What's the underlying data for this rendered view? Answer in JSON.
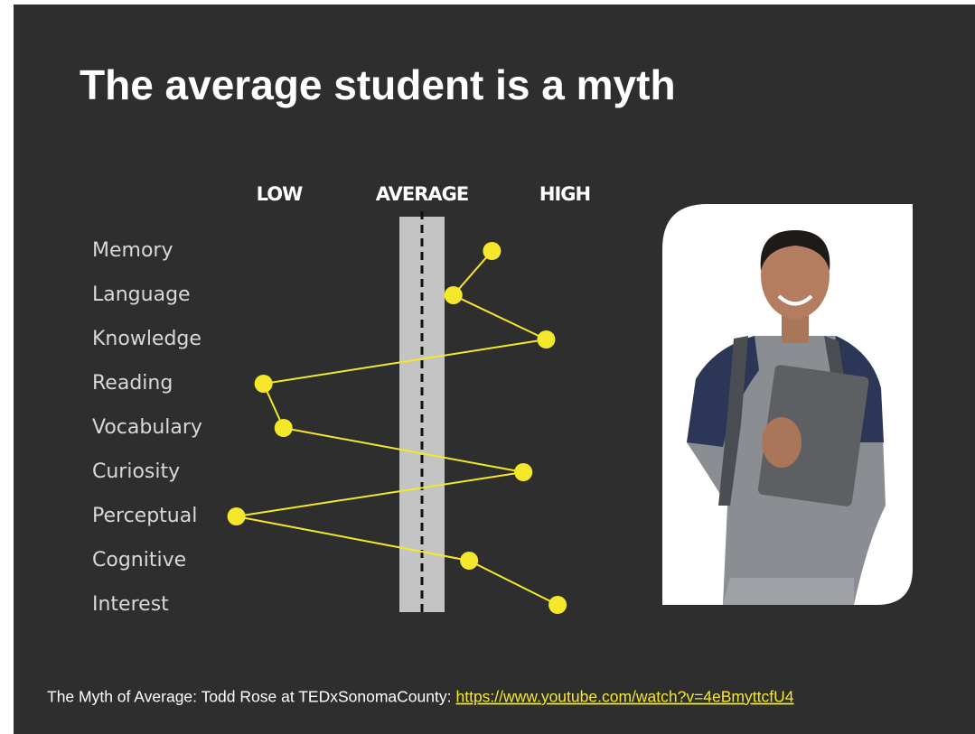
{
  "title": "The average student is a myth",
  "chart_data": {
    "type": "line",
    "categories": [
      "Memory",
      "Language",
      "Knowledge",
      "Reading",
      "Vocabulary",
      "Curiosity",
      "Perceptual",
      "Cognitive",
      "Interest"
    ],
    "values": [
      0.49,
      0.22,
      0.87,
      -1.11,
      -0.97,
      0.71,
      -1.3,
      0.33,
      0.95
    ],
    "color": "#f5e82a",
    "xlim": [
      -1.5,
      1.5
    ],
    "xticks": [
      {
        "value": -1,
        "label": "LOW"
      },
      {
        "value": 0,
        "label": "AVERAGE"
      },
      {
        "value": 1,
        "label": "HIGH"
      }
    ]
  },
  "footer": {
    "text": "The Myth of Average: Todd Rose at TEDxSonomaCounty:",
    "link": "https://www.youtube.com/watch?v=4eBmyttcfU4"
  }
}
